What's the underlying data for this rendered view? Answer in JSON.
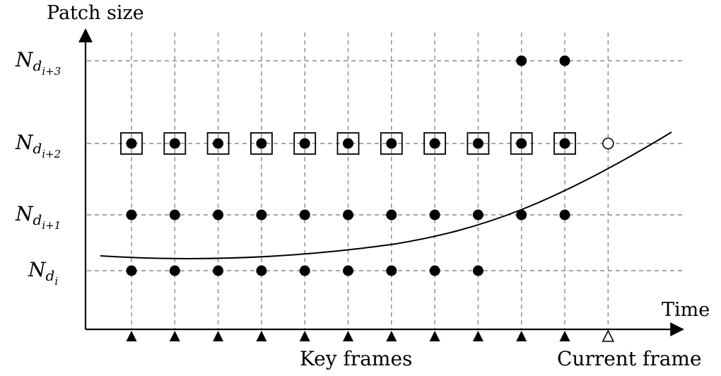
{
  "axes": {
    "y_title": "Patch size",
    "x_title": "Time"
  },
  "y_levels": [
    {
      "key": "Nd_i",
      "base": "N",
      "sub": "d",
      "subsub": "i"
    },
    {
      "key": "Nd_i+1",
      "base": "N",
      "sub": "d",
      "subsub": "i+1"
    },
    {
      "key": "Nd_i+2",
      "base": "N",
      "sub": "d",
      "subsub": "i+2"
    },
    {
      "key": "Nd_i+3",
      "base": "N",
      "sub": "d",
      "subsub": "i+3"
    }
  ],
  "columns": 12,
  "key_frame_columns": [
    1,
    2,
    3,
    4,
    5,
    6,
    7,
    8,
    9,
    10,
    11
  ],
  "current_frame_column": 12,
  "points": {
    "filled": {
      "Nd_i": [
        1,
        2,
        3,
        4,
        5,
        6,
        7,
        8,
        9
      ],
      "Nd_i+1": [
        1,
        2,
        3,
        4,
        5,
        6,
        7,
        8,
        9,
        10,
        11
      ],
      "Nd_i+2": [
        1,
        2,
        3,
        4,
        5,
        6,
        7,
        8,
        9,
        10,
        11
      ],
      "Nd_i+3": [
        10,
        11
      ]
    },
    "boxed": {
      "Nd_i+2": [
        1,
        2,
        3,
        4,
        5,
        6,
        7,
        8,
        9,
        10,
        11
      ]
    },
    "open": {
      "Nd_i+2": [
        12
      ]
    }
  },
  "captions": {
    "key_frames": "Key frames",
    "current_frame": "Current frame"
  },
  "colors": {
    "ink": "#000000",
    "grid": "#8a8a8a",
    "background": "#ffffff"
  },
  "markers": {
    "key_frame": "filled-triangle-marker",
    "current_frame": "open-triangle-marker"
  }
}
